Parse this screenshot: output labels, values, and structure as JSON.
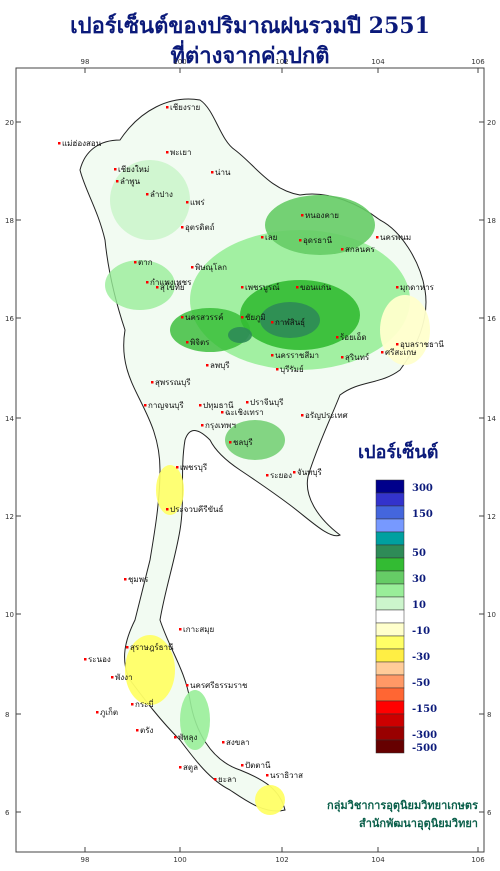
{
  "title": {
    "line1": "เปอร์เซ็นต์ของปริมาณฝนรวมปี 2551",
    "line2": "ที่ต่างจากค่าปกติ"
  },
  "axes": {
    "lon_ticks": [
      "98",
      "100",
      "102",
      "104",
      "106"
    ],
    "lat_ticks": [
      "20",
      "18",
      "16",
      "14",
      "12",
      "10",
      "8",
      "6"
    ]
  },
  "legend": {
    "title": "เปอร์เซ็นต์",
    "classes": [
      {
        "label": "300",
        "color": "#00008b"
      },
      {
        "label": "",
        "color": "#3333cc"
      },
      {
        "label": "150",
        "color": "#4466dd"
      },
      {
        "label": "",
        "color": "#7799ff"
      },
      {
        "label": "",
        "color": "#00a0a0"
      },
      {
        "label": "50",
        "color": "#2e8b57"
      },
      {
        "label": "",
        "color": "#33bb33"
      },
      {
        "label": "30",
        "color": "#66cc66"
      },
      {
        "label": "",
        "color": "#99ee99"
      },
      {
        "label": "10",
        "color": "#ccf5cc"
      },
      {
        "label": "",
        "color": "#ffffff"
      },
      {
        "label": "-10",
        "color": "#ffffcc"
      },
      {
        "label": "",
        "color": "#ffff66"
      },
      {
        "label": "-30",
        "color": "#ffee44"
      },
      {
        "label": "",
        "color": "#ffcc99"
      },
      {
        "label": "-50",
        "color": "#ff9966"
      },
      {
        "label": "",
        "color": "#ff6633"
      },
      {
        "label": "-150",
        "color": "#ff0000"
      },
      {
        "label": "",
        "color": "#cc0000"
      },
      {
        "label": "-300",
        "color": "#990000"
      },
      {
        "label": "-500",
        "color": "#660000"
      }
    ]
  },
  "cities": [
    "เชียงราย",
    "แม่ฮ่องสอน",
    "เชียงใหม่",
    "ลำพูน",
    "พะเยา",
    "น่าน",
    "ลำปาง",
    "แพร่",
    "อุตรดิตถ์",
    "ตาก",
    "สุโขทัย",
    "พิษณุโลก",
    "เพชรบูรณ์",
    "เลย",
    "หนองคาย",
    "อุดรธานี",
    "สกลนคร",
    "นครพนม",
    "มุกดาหาร",
    "ขอนแก่น",
    "กาฬสินธุ์",
    "ชัยภูมิ",
    "นครสวรรค์",
    "กำแพงเพชร",
    "พิจิตร",
    "ลพบุรี",
    "นครราชสีมา",
    "บุรีรัมย์",
    "สุรินทร์",
    "ร้อยเอ็ด",
    "อุบลราชธานี",
    "ศรีสะเกษ",
    "สุพรรณบุรี",
    "กาญจนบุรี",
    "ปทุมธานี",
    "กรุงเทพฯ",
    "ปราจีนบุรี",
    "ฉะเชิงเทรา",
    "ชลบุรี",
    "ระยอง",
    "จันทบุรี",
    "เพชรบุรี",
    "ประจวบคีรีขันธ์",
    "ชุมพร",
    "ระนอง",
    "สุราษฎร์ธานี",
    "เกาะสมุย",
    "พังงา",
    "ภูเก็ต",
    "กระบี่",
    "นครศรีธรรมราช",
    "ตรัง",
    "พัทลุง",
    "สงขลา",
    "สตูล",
    "ปัตตานี",
    "ยะลา",
    "นราธิวาส",
    "อรัญประเทศ"
  ],
  "credit": {
    "line1": "กลุ่มวิชาการอุตุนิยมวิทยาเกษตร",
    "line2": "สำนักพัฒนาอุตุนิยมวิทยา"
  }
}
